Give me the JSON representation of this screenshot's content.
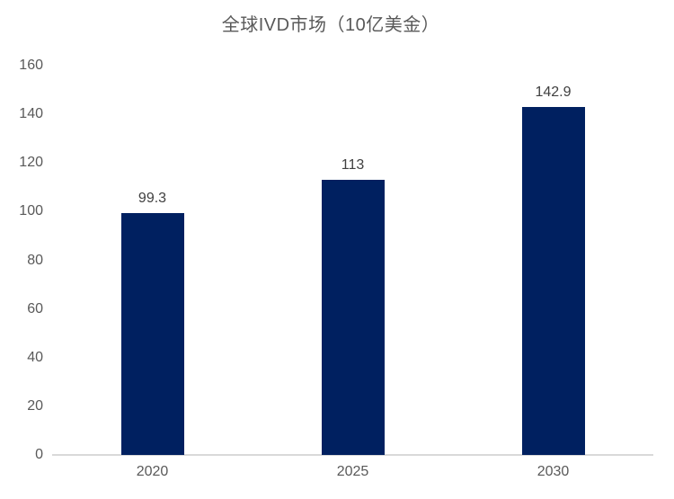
{
  "chart_data": {
    "type": "bar",
    "title": "全球IVD市场（10亿美金）",
    "categories": [
      "2020",
      "2025",
      "2030"
    ],
    "values": [
      99.3,
      113,
      142.9
    ],
    "data_labels": [
      "99.3",
      "113",
      "142.9"
    ],
    "xlabel": "",
    "ylabel": "",
    "ylim": [
      0,
      160
    ],
    "ytick_step": 20,
    "grid": false,
    "legend": false,
    "colors": {
      "bar": "#002060",
      "title": "#595959",
      "tick_label": "#595959",
      "data_label": "#404040",
      "axis_line": "#d9d9d9",
      "background": "#ffffff"
    }
  }
}
